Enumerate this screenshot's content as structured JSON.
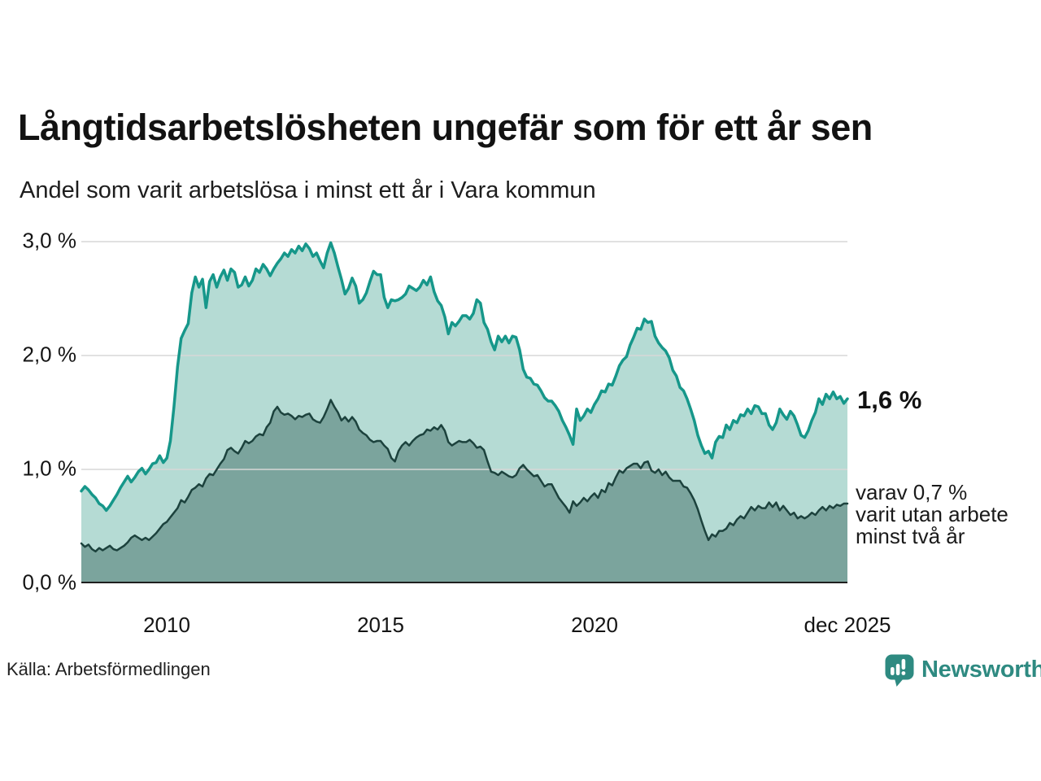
{
  "header": {
    "title": "Långtidsarbetslösheten ungefär som för ett år sen",
    "subtitle": "Andel som varit arbetslösa i minst ett år i Vara kommun"
  },
  "chart": {
    "y_ticks": [
      {
        "label": "3,0 %",
        "value": 3
      },
      {
        "label": "2,0 %",
        "value": 2
      },
      {
        "label": "1,0 %",
        "value": 1
      },
      {
        "label": "0,0 %",
        "value": 0
      }
    ],
    "x_ticks": [
      {
        "label": "2010",
        "month_index": 24
      },
      {
        "label": "2015",
        "month_index": 84
      },
      {
        "label": "2020",
        "month_index": 144
      },
      {
        "label": "dec 2025",
        "month_index": 215
      }
    ],
    "end_label": "1,6 %",
    "note_lines": [
      "varav 0,7 %",
      "varit utan arbete",
      "minst två år"
    ],
    "colors": {
      "total_line": "#16978a",
      "total_fill": "#b5dbd4",
      "two_years_line": "#1c423d",
      "two_years_fill": "#7ba49d",
      "grid": "#d7d7d7",
      "axis": "#1f1f1f",
      "brand": "#2e8a81"
    }
  },
  "chart_data": {
    "type": "area",
    "title": "Långtidsarbetslösheten ungefär som för ett år sen",
    "subtitle": "Andel som varit arbetslösa i minst ett år i Vara kommun",
    "x_start": "2008-01",
    "x_end": "2025-12",
    "x_interval": "month",
    "x_tick_labels": [
      "2010",
      "2015",
      "2020",
      "dec 2025"
    ],
    "ylabel": "",
    "yunit": "%",
    "ylim": [
      0,
      3
    ],
    "grid": "horizontal",
    "legend_position": "right-annotations",
    "series": [
      {
        "name": "Andel arbetslösa minst ett år",
        "end_value_label": "1,6 %",
        "values": [
          0.81,
          0.85,
          0.82,
          0.78,
          0.75,
          0.7,
          0.68,
          0.64,
          0.68,
          0.73,
          0.78,
          0.84,
          0.89,
          0.94,
          0.89,
          0.93,
          0.98,
          1.01,
          0.96,
          1.0,
          1.05,
          1.06,
          1.12,
          1.06,
          1.1,
          1.25,
          1.55,
          1.9,
          2.15,
          2.22,
          2.28,
          2.55,
          2.69,
          2.6,
          2.67,
          2.42,
          2.65,
          2.71,
          2.6,
          2.69,
          2.75,
          2.66,
          2.76,
          2.73,
          2.6,
          2.62,
          2.69,
          2.61,
          2.66,
          2.76,
          2.73,
          2.8,
          2.76,
          2.7,
          2.76,
          2.81,
          2.85,
          2.9,
          2.87,
          2.93,
          2.9,
          2.96,
          2.92,
          2.98,
          2.94,
          2.87,
          2.9,
          2.83,
          2.77,
          2.9,
          2.99,
          2.9,
          2.78,
          2.67,
          2.54,
          2.59,
          2.68,
          2.61,
          2.46,
          2.49,
          2.55,
          2.65,
          2.74,
          2.71,
          2.71,
          2.51,
          2.42,
          2.49,
          2.48,
          2.49,
          2.51,
          2.54,
          2.61,
          2.59,
          2.57,
          2.6,
          2.66,
          2.62,
          2.69,
          2.56,
          2.48,
          2.44,
          2.34,
          2.19,
          2.29,
          2.26,
          2.3,
          2.35,
          2.35,
          2.32,
          2.37,
          2.49,
          2.46,
          2.29,
          2.23,
          2.12,
          2.05,
          2.17,
          2.12,
          2.17,
          2.11,
          2.17,
          2.16,
          2.05,
          1.88,
          1.81,
          1.8,
          1.75,
          1.74,
          1.69,
          1.63,
          1.6,
          1.6,
          1.56,
          1.51,
          1.43,
          1.37,
          1.3,
          1.22,
          1.53,
          1.43,
          1.47,
          1.53,
          1.5,
          1.57,
          1.62,
          1.69,
          1.68,
          1.75,
          1.74,
          1.82,
          1.91,
          1.96,
          1.99,
          2.09,
          2.16,
          2.24,
          2.23,
          2.32,
          2.29,
          2.3,
          2.17,
          2.11,
          2.07,
          2.04,
          1.98,
          1.87,
          1.82,
          1.72,
          1.69,
          1.62,
          1.53,
          1.43,
          1.3,
          1.21,
          1.14,
          1.16,
          1.1,
          1.24,
          1.29,
          1.28,
          1.39,
          1.35,
          1.43,
          1.41,
          1.48,
          1.47,
          1.53,
          1.49,
          1.56,
          1.55,
          1.49,
          1.49,
          1.39,
          1.35,
          1.41,
          1.53,
          1.48,
          1.44,
          1.51,
          1.47,
          1.39,
          1.3,
          1.28,
          1.34,
          1.43,
          1.5,
          1.62,
          1.57,
          1.66,
          1.62,
          1.68,
          1.62,
          1.64,
          1.58,
          1.62
        ]
      },
      {
        "name": "varav utan arbete minst två år",
        "end_value_label": "0,7 %",
        "values": [
          0.35,
          0.32,
          0.34,
          0.3,
          0.28,
          0.31,
          0.29,
          0.31,
          0.33,
          0.3,
          0.29,
          0.31,
          0.33,
          0.36,
          0.4,
          0.42,
          0.4,
          0.38,
          0.4,
          0.38,
          0.41,
          0.44,
          0.48,
          0.52,
          0.54,
          0.58,
          0.62,
          0.66,
          0.73,
          0.71,
          0.76,
          0.82,
          0.84,
          0.87,
          0.85,
          0.92,
          0.96,
          0.95,
          1.0,
          1.05,
          1.09,
          1.17,
          1.19,
          1.16,
          1.14,
          1.19,
          1.25,
          1.23,
          1.25,
          1.29,
          1.31,
          1.3,
          1.37,
          1.41,
          1.51,
          1.55,
          1.5,
          1.48,
          1.49,
          1.47,
          1.44,
          1.47,
          1.46,
          1.48,
          1.49,
          1.44,
          1.42,
          1.41,
          1.46,
          1.53,
          1.61,
          1.55,
          1.5,
          1.43,
          1.46,
          1.42,
          1.46,
          1.42,
          1.35,
          1.32,
          1.3,
          1.26,
          1.24,
          1.25,
          1.25,
          1.21,
          1.18,
          1.1,
          1.07,
          1.16,
          1.21,
          1.24,
          1.21,
          1.25,
          1.28,
          1.3,
          1.31,
          1.35,
          1.34,
          1.37,
          1.35,
          1.39,
          1.34,
          1.24,
          1.21,
          1.23,
          1.25,
          1.24,
          1.24,
          1.26,
          1.23,
          1.19,
          1.2,
          1.17,
          1.07,
          0.98,
          0.97,
          0.95,
          0.98,
          0.96,
          0.94,
          0.93,
          0.95,
          1.01,
          1.04,
          1.0,
          0.97,
          0.94,
          0.95,
          0.9,
          0.85,
          0.87,
          0.87,
          0.81,
          0.75,
          0.71,
          0.67,
          0.62,
          0.72,
          0.68,
          0.71,
          0.75,
          0.72,
          0.76,
          0.79,
          0.75,
          0.82,
          0.8,
          0.88,
          0.86,
          0.93,
          0.99,
          0.97,
          1.01,
          1.03,
          1.05,
          1.05,
          1.01,
          1.06,
          1.07,
          0.99,
          0.97,
          1.0,
          0.95,
          0.98,
          0.93,
          0.9,
          0.9,
          0.9,
          0.85,
          0.84,
          0.79,
          0.73,
          0.65,
          0.55,
          0.46,
          0.38,
          0.43,
          0.41,
          0.46,
          0.46,
          0.48,
          0.53,
          0.51,
          0.56,
          0.59,
          0.57,
          0.62,
          0.67,
          0.64,
          0.68,
          0.66,
          0.66,
          0.71,
          0.67,
          0.71,
          0.64,
          0.68,
          0.64,
          0.6,
          0.62,
          0.57,
          0.59,
          0.57,
          0.59,
          0.62,
          0.6,
          0.64,
          0.67,
          0.64,
          0.68,
          0.66,
          0.69,
          0.68,
          0.7,
          0.7
        ]
      }
    ]
  },
  "footer": {
    "source": "Källa: Arbetsförmedlingen",
    "logo_text": "Newsworthy",
    "logo_icon": "newsworthy-speech-bubble-barchart-icon"
  }
}
